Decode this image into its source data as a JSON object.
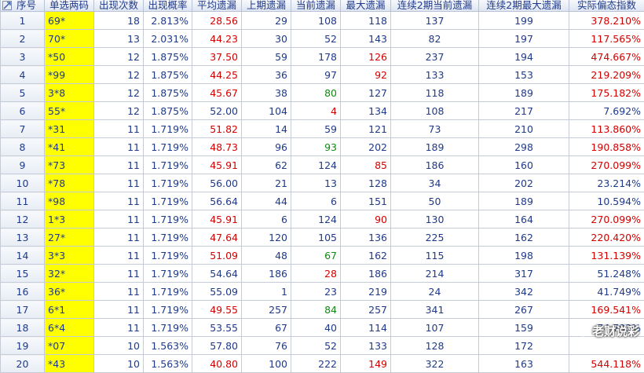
{
  "columns": [
    "序号",
    "单选两码",
    "出现次数",
    "出现概率",
    "平均遗漏",
    "上期遗漏",
    "当前遗漏",
    "最大遗漏",
    "连续2期当前遗漏",
    "连续2期最大遗漏",
    "实际偏态指数"
  ],
  "rows": [
    {
      "idx": "1",
      "code": "69*",
      "count": "18",
      "prob": "2.813%",
      "avg": "28.56",
      "last": "29",
      "cur": "108",
      "max": "118",
      "c2cur": "137",
      "c2max": "199",
      "index": "378.210%",
      "avg_color": "red",
      "cur_color": "blue",
      "max_color": "blue"
    },
    {
      "idx": "2",
      "code": "70*",
      "count": "13",
      "prob": "2.031%",
      "avg": "44.23",
      "last": "30",
      "cur": "52",
      "max": "143",
      "c2cur": "82",
      "c2max": "197",
      "index": "117.565%",
      "avg_color": "red",
      "cur_color": "blue",
      "max_color": "blue"
    },
    {
      "idx": "3",
      "code": "*50",
      "count": "12",
      "prob": "1.875%",
      "avg": "37.50",
      "last": "59",
      "cur": "178",
      "max": "126",
      "c2cur": "237",
      "c2max": "194",
      "index": "474.667%",
      "avg_color": "red",
      "cur_color": "blue",
      "max_color": "red"
    },
    {
      "idx": "4",
      "code": "*99",
      "count": "12",
      "prob": "1.875%",
      "avg": "44.25",
      "last": "36",
      "cur": "97",
      "max": "92",
      "c2cur": "133",
      "c2max": "153",
      "index": "219.209%",
      "avg_color": "red",
      "cur_color": "blue",
      "max_color": "red"
    },
    {
      "idx": "5",
      "code": "3*8",
      "count": "12",
      "prob": "1.875%",
      "avg": "45.67",
      "last": "38",
      "cur": "80",
      "max": "127",
      "c2cur": "118",
      "c2max": "189",
      "index": "175.182%",
      "avg_color": "red",
      "cur_color": "green",
      "max_color": "blue"
    },
    {
      "idx": "6",
      "code": "55*",
      "count": "12",
      "prob": "1.875%",
      "avg": "52.00",
      "last": "104",
      "cur": "4",
      "max": "134",
      "c2cur": "108",
      "c2max": "217",
      "index": "7.692%",
      "avg_color": "blue",
      "cur_color": "red",
      "max_color": "blue"
    },
    {
      "idx": "7",
      "code": "*31",
      "count": "11",
      "prob": "1.719%",
      "avg": "51.82",
      "last": "14",
      "cur": "59",
      "max": "121",
      "c2cur": "73",
      "c2max": "210",
      "index": "113.860%",
      "avg_color": "red",
      "cur_color": "blue",
      "max_color": "blue"
    },
    {
      "idx": "8",
      "code": "*41",
      "count": "11",
      "prob": "1.719%",
      "avg": "48.73",
      "last": "96",
      "cur": "93",
      "max": "202",
      "c2cur": "189",
      "c2max": "298",
      "index": "190.858%",
      "avg_color": "red",
      "cur_color": "green",
      "max_color": "blue"
    },
    {
      "idx": "9",
      "code": "*73",
      "count": "11",
      "prob": "1.719%",
      "avg": "45.91",
      "last": "62",
      "cur": "124",
      "max": "85",
      "c2cur": "186",
      "c2max": "160",
      "index": "270.099%",
      "avg_color": "red",
      "cur_color": "blue",
      "max_color": "red"
    },
    {
      "idx": "10",
      "code": "*78",
      "count": "11",
      "prob": "1.719%",
      "avg": "56.00",
      "last": "21",
      "cur": "13",
      "max": "128",
      "c2cur": "34",
      "c2max": "202",
      "index": "23.214%",
      "avg_color": "blue",
      "cur_color": "blue",
      "max_color": "blue"
    },
    {
      "idx": "11",
      "code": "*98",
      "count": "11",
      "prob": "1.719%",
      "avg": "56.64",
      "last": "44",
      "cur": "6",
      "max": "151",
      "c2cur": "50",
      "c2max": "189",
      "index": "10.594%",
      "avg_color": "blue",
      "cur_color": "blue",
      "max_color": "blue"
    },
    {
      "idx": "12",
      "code": "1*3",
      "count": "11",
      "prob": "1.719%",
      "avg": "45.91",
      "last": "6",
      "cur": "124",
      "max": "90",
      "c2cur": "130",
      "c2max": "164",
      "index": "270.099%",
      "avg_color": "red",
      "cur_color": "blue",
      "max_color": "red"
    },
    {
      "idx": "13",
      "code": "27*",
      "count": "11",
      "prob": "1.719%",
      "avg": "47.64",
      "last": "120",
      "cur": "105",
      "max": "136",
      "c2cur": "225",
      "c2max": "162",
      "index": "220.420%",
      "avg_color": "red",
      "cur_color": "blue",
      "max_color": "blue"
    },
    {
      "idx": "14",
      "code": "3*3",
      "count": "11",
      "prob": "1.719%",
      "avg": "51.09",
      "last": "48",
      "cur": "67",
      "max": "162",
      "c2cur": "115",
      "c2max": "198",
      "index": "131.139%",
      "avg_color": "red",
      "cur_color": "green",
      "max_color": "blue"
    },
    {
      "idx": "15",
      "code": "32*",
      "count": "11",
      "prob": "1.719%",
      "avg": "54.64",
      "last": "186",
      "cur": "28",
      "max": "186",
      "c2cur": "214",
      "c2max": "317",
      "index": "51.248%",
      "avg_color": "blue",
      "cur_color": "red",
      "max_color": "blue"
    },
    {
      "idx": "16",
      "code": "36*",
      "count": "11",
      "prob": "1.719%",
      "avg": "55.09",
      "last": "1",
      "cur": "23",
      "max": "219",
      "c2cur": "24",
      "c2max": "342",
      "index": "41.749%",
      "avg_color": "blue",
      "cur_color": "blue",
      "max_color": "blue"
    },
    {
      "idx": "17",
      "code": "6*1",
      "count": "11",
      "prob": "1.719%",
      "avg": "49.55",
      "last": "257",
      "cur": "84",
      "max": "257",
      "c2cur": "341",
      "c2max": "267",
      "index": "169.541%",
      "avg_color": "red",
      "cur_color": "green",
      "max_color": "blue"
    },
    {
      "idx": "18",
      "code": "6*4",
      "count": "11",
      "prob": "1.719%",
      "avg": "53.55",
      "last": "67",
      "cur": "40",
      "max": "114",
      "c2cur": "107",
      "c2max": "159",
      "index": "74.703%",
      "avg_color": "blue",
      "cur_color": "blue",
      "max_color": "blue"
    },
    {
      "idx": "19",
      "code": "*07",
      "count": "10",
      "prob": "1.563%",
      "avg": "57.80",
      "last": "76",
      "cur": "52",
      "max": "133",
      "c2cur": "128",
      "c2max": "172",
      "index": "",
      "avg_color": "blue",
      "cur_color": "blue",
      "max_color": "blue"
    },
    {
      "idx": "20",
      "code": "*43",
      "count": "10",
      "prob": "1.563%",
      "avg": "40.80",
      "last": "100",
      "cur": "222",
      "max": "149",
      "c2cur": "322",
      "c2max": "163",
      "index": "544.118%",
      "avg_color": "red",
      "cur_color": "blue",
      "max_color": "red"
    }
  ],
  "index_color_red_threshold": 100,
  "colors": {
    "red": "#d40000",
    "green": "#108a10",
    "blue": "#1f3a8a",
    "code_bg": "#ffff00"
  },
  "watermark": {
    "text": "老财说彩",
    "icon": "wechat-icon"
  }
}
